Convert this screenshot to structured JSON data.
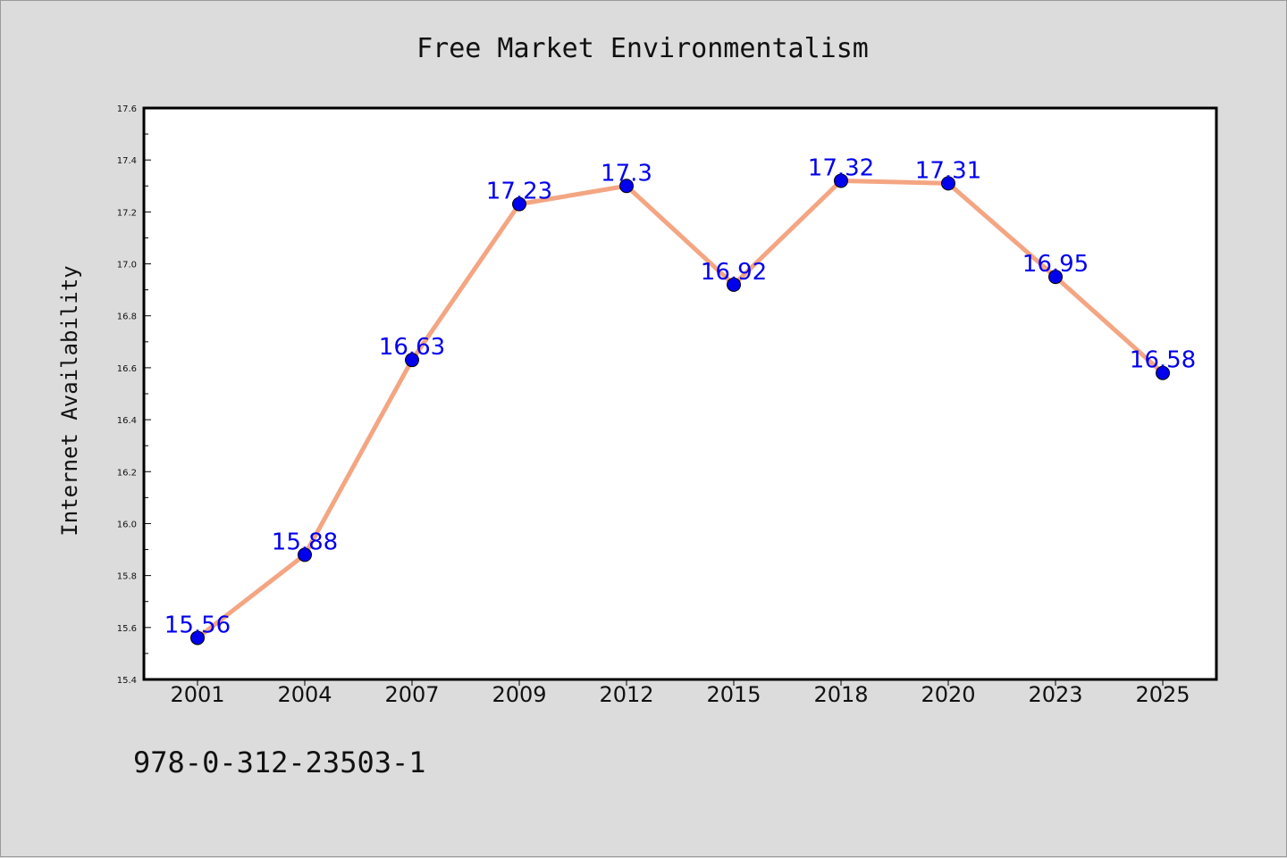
{
  "chart_data": {
    "type": "line",
    "title": "Free Market Environmentalism",
    "xlabel": "",
    "ylabel": "Internet Availability",
    "categories": [
      "2001",
      "2004",
      "2007",
      "2009",
      "2012",
      "2015",
      "2018",
      "2020",
      "2023",
      "2025"
    ],
    "series": [
      {
        "values": [
          15.56,
          15.88,
          16.63,
          17.23,
          17.3,
          16.92,
          17.32,
          17.31,
          16.95,
          16.58
        ],
        "line_color": "#f4a582",
        "marker_color": "#0000ee"
      }
    ],
    "data_labels": [
      "15.56",
      "15.88",
      "16.63",
      "17.23",
      "17.3",
      "16.92",
      "17.32",
      "17.31",
      "16.95",
      "16.58"
    ],
    "ylim": [
      15.4,
      17.6
    ],
    "yticks": [
      "15.4",
      "15.6",
      "15.8",
      "16.0",
      "16.2",
      "16.4",
      "16.6",
      "16.8",
      "17.0",
      "17.2",
      "17.4",
      "17.6"
    ],
    "grid": false,
    "legend": "none"
  },
  "footer": {
    "code": "978-0-312-23503-1"
  },
  "colors": {
    "background": "#dcdcdc",
    "plot_background": "#ffffff",
    "line": "#f4a582",
    "marker": "#0000ee",
    "data_label": "#0000ee"
  }
}
